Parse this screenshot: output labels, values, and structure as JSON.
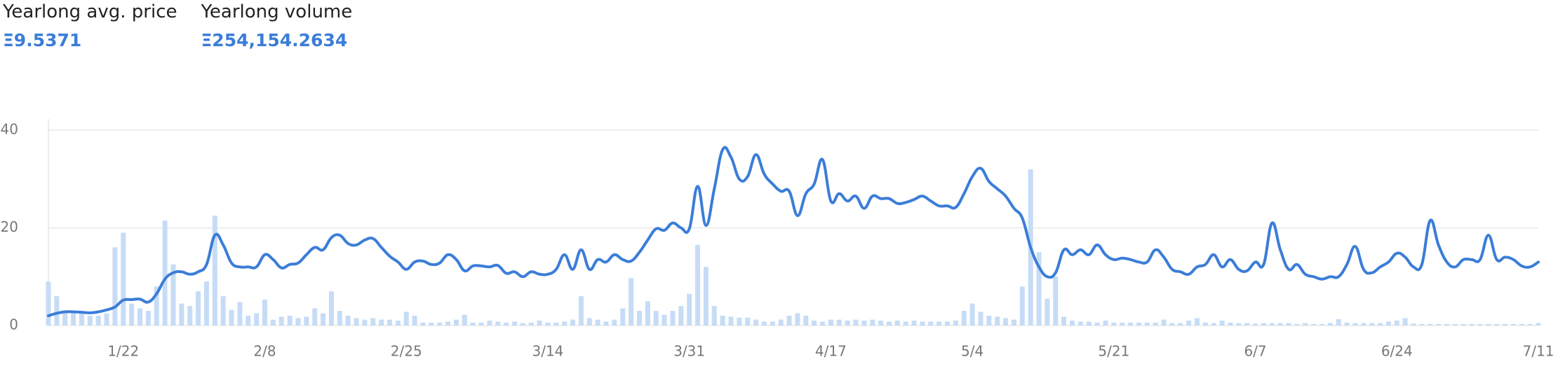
{
  "stats": [
    {
      "label": "Yearlong avg. price",
      "value": "Ξ9.5371"
    },
    {
      "label": "Yearlong volume",
      "value": "Ξ254,154.2634"
    }
  ],
  "chart_data": {
    "type": "bar-line",
    "categories": [
      null,
      null,
      null,
      null,
      null,
      null,
      null,
      null,
      null,
      "1/22",
      null,
      null,
      null,
      null,
      null,
      null,
      null,
      null,
      null,
      null,
      null,
      null,
      null,
      null,
      null,
      null,
      "2/8",
      null,
      null,
      null,
      null,
      null,
      null,
      null,
      null,
      null,
      null,
      null,
      null,
      null,
      null,
      null,
      null,
      "2/25",
      null,
      null,
      null,
      null,
      null,
      null,
      null,
      null,
      null,
      null,
      null,
      null,
      null,
      null,
      null,
      null,
      "3/14",
      null,
      null,
      null,
      null,
      null,
      null,
      null,
      null,
      null,
      null,
      null,
      null,
      null,
      null,
      null,
      null,
      "3/31",
      null,
      null,
      null,
      null,
      null,
      null,
      null,
      null,
      null,
      null,
      null,
      null,
      null,
      null,
      null,
      null,
      "4/17",
      null,
      null,
      null,
      null,
      null,
      null,
      null,
      null,
      null,
      null,
      null,
      null,
      null,
      null,
      null,
      null,
      "5/4",
      null,
      null,
      null,
      null,
      null,
      null,
      null,
      null,
      null,
      null,
      null,
      null,
      null,
      null,
      null,
      null,
      "5/21",
      null,
      null,
      null,
      null,
      null,
      null,
      null,
      null,
      null,
      null,
      null,
      null,
      null,
      null,
      null,
      null,
      "6/7",
      null,
      null,
      null,
      null,
      null,
      null,
      null,
      null,
      null,
      null,
      null,
      null,
      null,
      null,
      null,
      null,
      "6/24",
      null,
      null,
      null,
      null,
      null,
      null,
      null,
      null,
      null,
      null,
      null,
      null,
      null,
      null,
      null,
      null,
      "7/11"
    ],
    "series": [
      {
        "type": "bar",
        "color": "#c6dcf6",
        "values": [
          9,
          6,
          3,
          2.5,
          2.5,
          2,
          2,
          2.5,
          16,
          19,
          4.5,
          3.5,
          3,
          8,
          21.5,
          12.5,
          4.5,
          4,
          7,
          9,
          22.5,
          6,
          3.2,
          4.8,
          2,
          2.5,
          5.3,
          1.2,
          1.8,
          2,
          1.5,
          1.8,
          3.5,
          2.5,
          7,
          3,
          2,
          1.5,
          1.2,
          1.5,
          1.2,
          1.2,
          1,
          2.8,
          2,
          0.6,
          0.6,
          0.6,
          0.8,
          1.2,
          2.2,
          0.6,
          0.6,
          1,
          0.8,
          0.6,
          0.8,
          0.5,
          0.6,
          1,
          0.6,
          0.6,
          0.8,
          1.2,
          6,
          1.5,
          1.2,
          0.8,
          1.2,
          3.5,
          9.7,
          3,
          5,
          3,
          2.2,
          3,
          4,
          6.5,
          16.5,
          12,
          4,
          2,
          1.8,
          1.6,
          1.6,
          1.2,
          0.8,
          0.8,
          1.2,
          2,
          2.5,
          2,
          1,
          0.8,
          1.2,
          1.2,
          1,
          1.2,
          1,
          1.2,
          1,
          0.8,
          1,
          0.8,
          1,
          0.8,
          0.8,
          0.8,
          0.8,
          1,
          3,
          4.5,
          2.8,
          2,
          1.8,
          1.5,
          1.2,
          8,
          32,
          15,
          5.5,
          10,
          1.8,
          1,
          0.8,
          0.8,
          0.6,
          1,
          0.6,
          0.6,
          0.6,
          0.6,
          0.6,
          0.6,
          1.2,
          0.5,
          0.5,
          1,
          1.5,
          0.6,
          0.5,
          1,
          0.6,
          0.5,
          0.5,
          0.4,
          0.5,
          0.5,
          0.5,
          0.5,
          0.3,
          0.5,
          0.3,
          0.3,
          0.5,
          1.3,
          0.6,
          0.5,
          0.5,
          0.5,
          0.5,
          0.8,
          1,
          1.5,
          0.4,
          0.3,
          0.3,
          0.3,
          0.3,
          0.3,
          0.3,
          0.3,
          0.3,
          0.3,
          0.3,
          0.3,
          0.3,
          0.3,
          0.3,
          0.5
        ]
      },
      {
        "type": "line",
        "color": "#3b7dd8",
        "values": [
          2,
          2.5,
          2.8,
          2.8,
          2.7,
          2.6,
          2.8,
          3.2,
          3.8,
          5.2,
          5.3,
          5.4,
          4.8,
          6.5,
          9.5,
          10.8,
          11,
          10.5,
          11,
          12.5,
          18.5,
          16.5,
          12.8,
          12,
          12,
          12,
          14.5,
          13.5,
          11.8,
          12.5,
          12.8,
          14.5,
          16,
          15.5,
          18,
          18.5,
          16.8,
          16.5,
          17.5,
          17.8,
          16,
          14.2,
          13,
          11.5,
          13,
          13.2,
          12.5,
          12.8,
          14.5,
          13.5,
          11.2,
          12.2,
          12.2,
          12,
          12.3,
          10.7,
          11,
          10,
          11,
          10.5,
          10.5,
          11.5,
          14.5,
          11.5,
          15.5,
          11.5,
          13.5,
          13,
          14.5,
          13.5,
          13.2,
          15,
          17.5,
          19.8,
          19.5,
          21,
          20,
          19.8,
          28.5,
          20.5,
          28,
          36,
          34.5,
          30,
          30.5,
          35,
          31,
          29,
          27.5,
          27.5,
          22.5,
          27,
          29,
          34,
          25.5,
          27,
          25.5,
          26.5,
          24,
          26.5,
          26,
          26,
          25,
          25.2,
          25.8,
          26.5,
          25.5,
          24.5,
          24.5,
          24.2,
          27,
          30.5,
          32.2,
          29.5,
          28,
          26.5,
          24,
          22,
          16,
          12,
          10,
          10.8,
          15.5,
          14.5,
          15.5,
          14.5,
          16.5,
          14.5,
          13.5,
          13.8,
          13.5,
          13,
          13,
          15.5,
          14,
          11.5,
          11,
          10.5,
          12,
          12.5,
          14.5,
          12,
          13.5,
          11.5,
          11.2,
          13,
          12.5,
          21,
          15.5,
          11.5,
          12.5,
          10.5,
          10,
          9.5,
          10,
          10,
          12.5,
          16.2,
          11.5,
          10.8,
          12,
          13,
          14.8,
          14,
          12,
          12.5,
          21.5,
          16.5,
          13,
          12,
          13.5,
          13.5,
          13.5,
          18.5,
          13.5,
          14,
          13.5,
          12.2,
          12,
          13
        ]
      }
    ],
    "ylim": [
      0,
      40
    ],
    "yticks": [
      0,
      20,
      40
    ],
    "grid": true
  }
}
